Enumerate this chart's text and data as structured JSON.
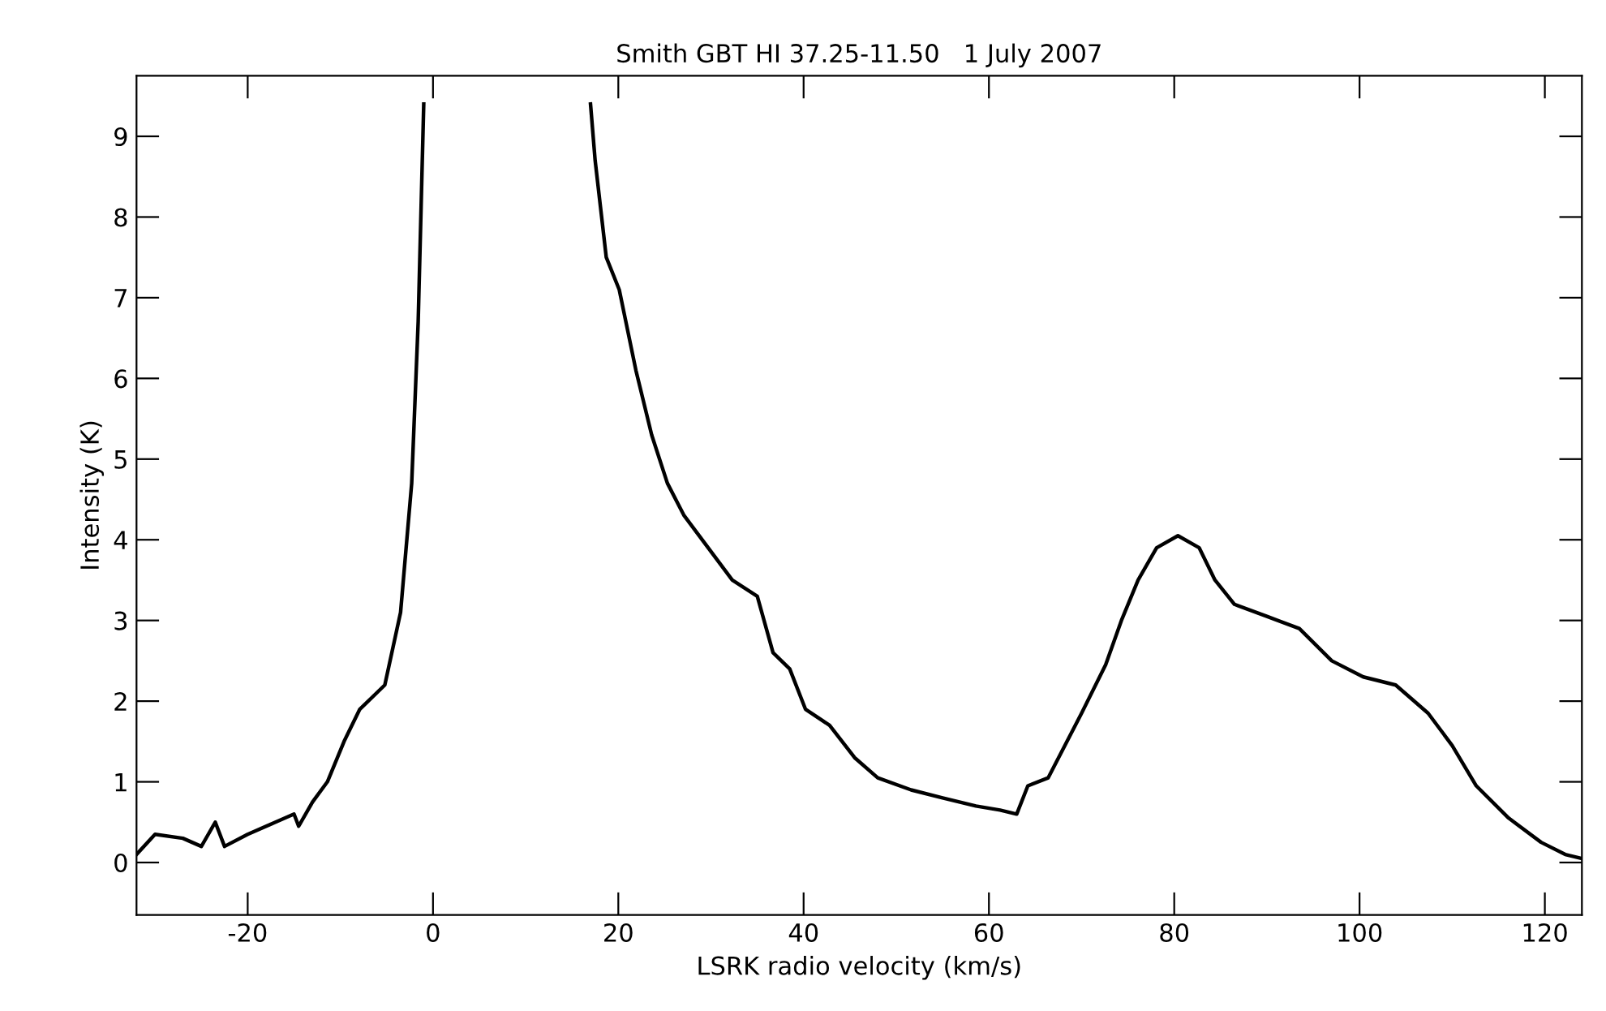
{
  "chart_data": {
    "type": "line",
    "title": "Smith GBT HI 37.25-11.50   1 July 2007",
    "xlabel": "LSRK radio velocity (km/s)",
    "ylabel": "Intensity (K)",
    "x": [
      -32,
      -30,
      -27,
      -25,
      -23.5,
      -22.5,
      -20,
      -17,
      -15,
      -14.5,
      -13,
      -11.4,
      -9.6,
      -7.9,
      -5.2,
      -3.5,
      -2.3,
      -1.6,
      -1.0,
      5,
      17,
      17.5,
      18.7,
      20.1,
      21.9,
      23.6,
      25.3,
      27.1,
      29.7,
      32.3,
      35,
      36.7,
      38.5,
      40.2,
      42.8,
      45.5,
      48,
      51.6,
      55,
      58.6,
      61.2,
      63,
      64.2,
      66.4,
      68.2,
      70,
      72.6,
      74.3,
      76.1,
      78.1,
      80.4,
      82.7,
      84.4,
      86.5,
      90,
      93.5,
      97,
      100.4,
      103.9,
      107.4,
      110,
      112.6,
      116.1,
      119.6,
      122.2,
      124
    ],
    "series": [
      {
        "color": "#000000",
        "values": [
          0.1,
          0.35,
          0.3,
          0.2,
          0.5,
          0.2,
          0.35,
          0.5,
          0.6,
          0.45,
          0.75,
          1.0,
          1.5,
          1.9,
          2.2,
          3.1,
          4.7,
          6.7,
          9.4,
          null,
          9.4,
          8.7,
          7.5,
          7.1,
          6.1,
          5.3,
          4.7,
          4.3,
          3.9,
          3.5,
          3.3,
          2.6,
          2.4,
          1.9,
          1.7,
          1.3,
          1.05,
          0.9,
          0.8,
          0.7,
          0.65,
          0.6,
          0.95,
          1.05,
          1.45,
          1.85,
          2.45,
          3.0,
          3.5,
          3.9,
          4.05,
          3.9,
          3.5,
          3.2,
          3.05,
          2.9,
          2.5,
          2.3,
          2.2,
          1.85,
          1.45,
          0.95,
          0.55,
          0.25,
          0.1,
          0.05
        ]
      }
    ],
    "xlim": [
      -32,
      124
    ],
    "ylim": [
      -0.65,
      9.75
    ],
    "xticks": [
      -20,
      0,
      20,
      40,
      60,
      80,
      100,
      120
    ],
    "yticks": [
      0,
      1,
      2,
      3,
      4,
      5,
      6,
      7,
      8,
      9
    ],
    "grid": false,
    "legend": false,
    "marker": "none",
    "line_style": "solid"
  }
}
